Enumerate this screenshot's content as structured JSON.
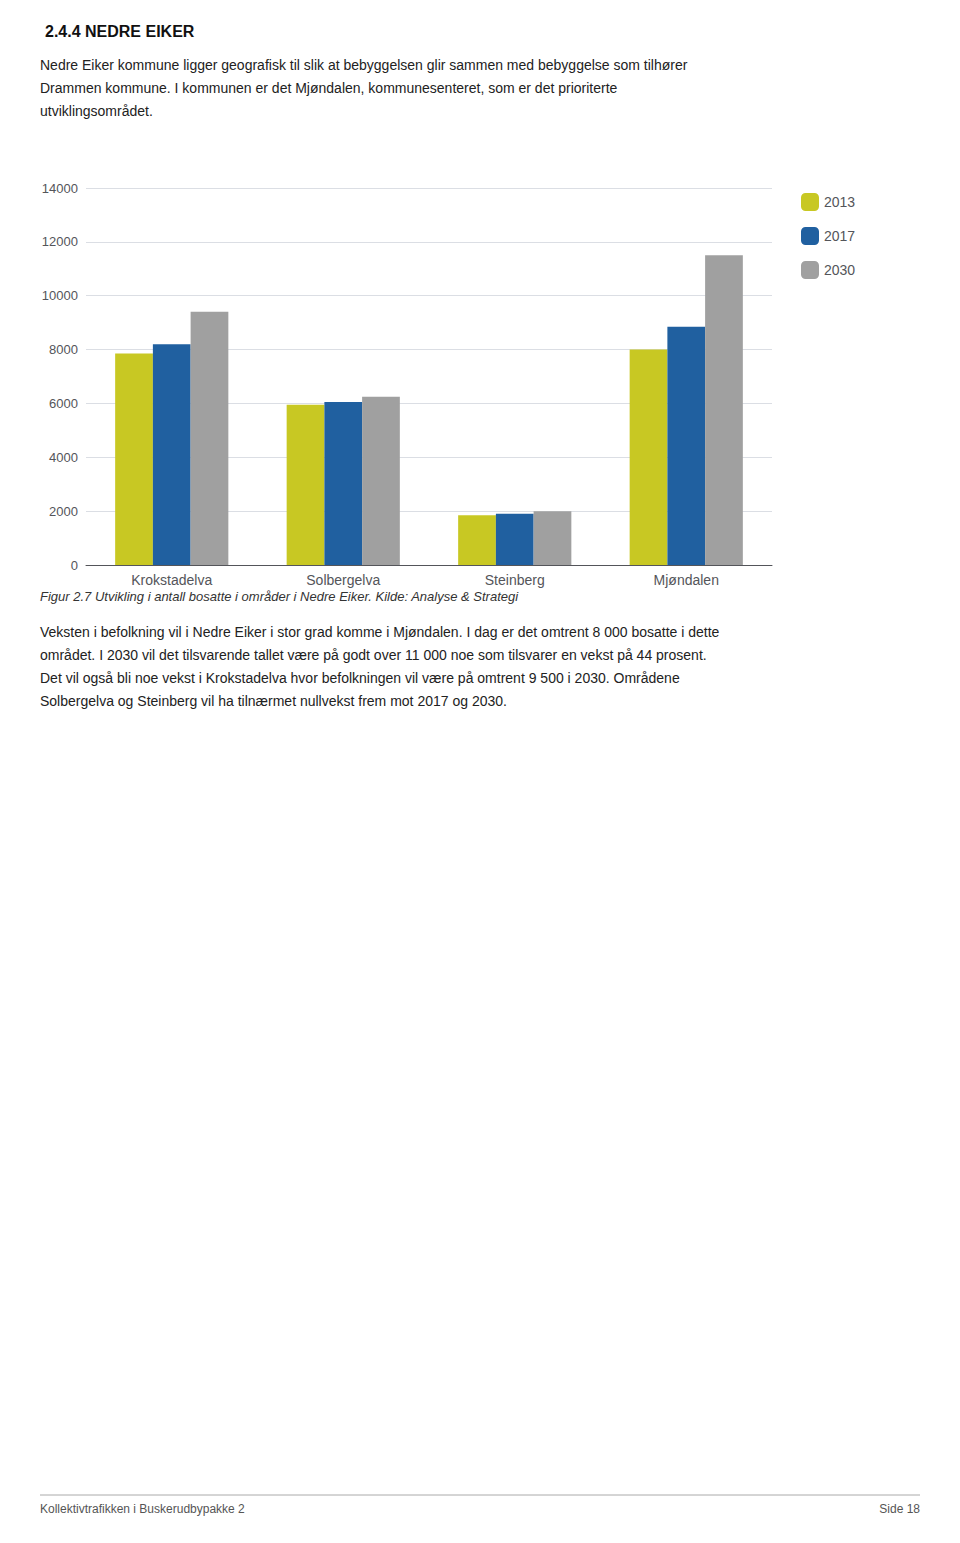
{
  "chart_data": {
    "type": "bar",
    "title": "2.4.4 NEDRE EIKER",
    "subtitle": [
      "Nedre Eiker kommune ligger geografisk til slik at bebyggelsen glir sammen med bebyggelse som tilhører",
      "Drammen kommune. I kommunen er det Mjøndalen, kommunesenteret, som er det prioriterte",
      "utviklingsområdet."
    ],
    "categories": [
      "Krokstadelva",
      "Solbergelva",
      "Steinberg",
      "Mjøndalen"
    ],
    "series": [
      {
        "name": "2013",
        "color": "#c8c823",
        "values": [
          7850,
          5950,
          1850,
          8000
        ]
      },
      {
        "name": "2017",
        "color": "#2060a0",
        "values": [
          8200,
          6050,
          1900,
          8850
        ]
      },
      {
        "name": "2030",
        "color": "#a0a0a0",
        "values": [
          9400,
          6250,
          2000,
          11500
        ]
      }
    ],
    "ylim": [
      0,
      14000
    ],
    "yticks": [
      0,
      2000,
      4000,
      6000,
      8000,
      10000,
      12000,
      14000
    ],
    "grid": true,
    "legend": "right",
    "caption": "Figur 2.7 Utvikling i antall bosatte i områder i Nedre Eiker. Kilde: Analyse & Strategi",
    "annotations": [
      "Veksten i befolkning vil i Nedre Eiker i stor grad komme i Mjøndalen. I dag er det omtrent 8 000 bosatte i dette",
      "området. I 2030 vil det tilsvarende tallet være på godt over 11 000 noe som tilsvarer en vekst på 44 prosent.",
      "Det vil også bli noe vekst i Krokstadelva hvor befolkningen vil være på omtrent 9 500 i 2030. Områdene",
      "Solbergelva og Steinberg vil ha tilnærmet nullvekst frem mot 2017 og 2030."
    ],
    "footer": [
      "Kollektivtrafikken i Buskerudbypakke 2",
      "Side 18"
    ]
  }
}
